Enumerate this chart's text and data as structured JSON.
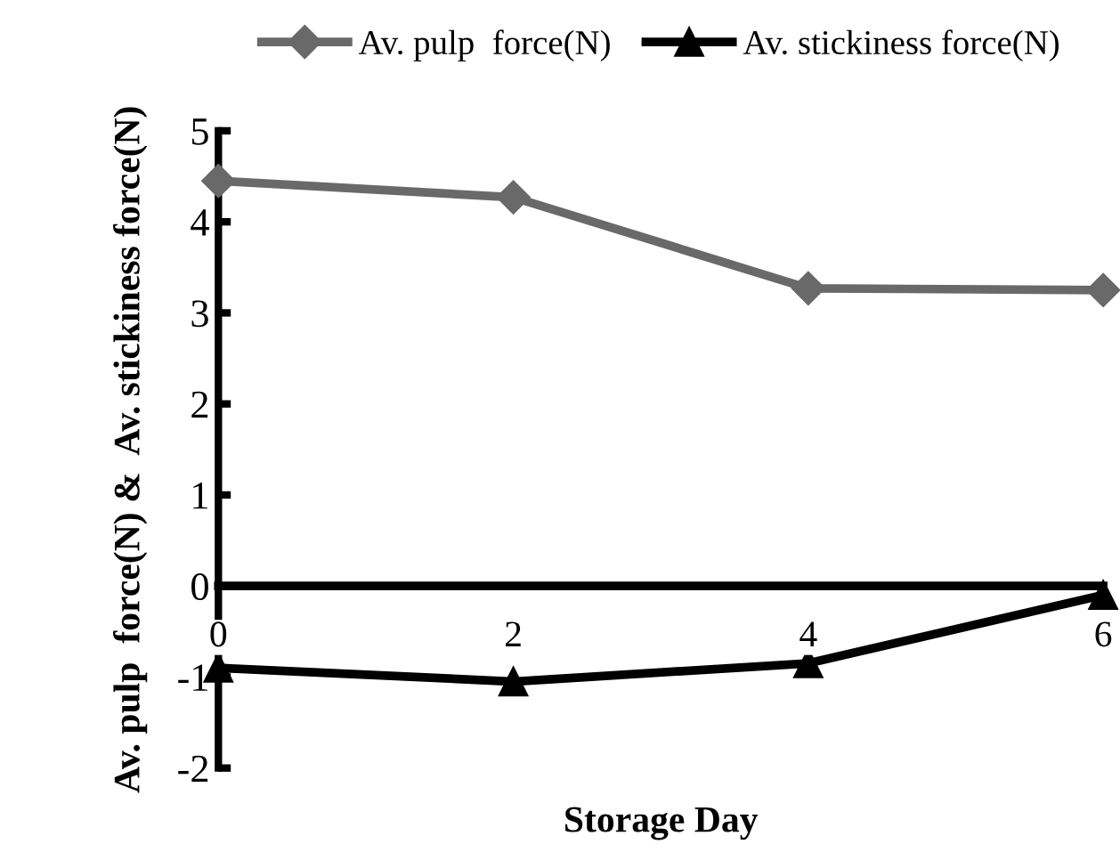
{
  "chart_data": {
    "type": "line",
    "xlabel": "Storage Day",
    "ylabel": "Av. pulp  force(N) &  Av. stickiness force(N)",
    "categories": [
      "0",
      "2",
      "4",
      "6"
    ],
    "series": [
      {
        "name": "Av. pulp  force(N)",
        "color": "#696969",
        "marker": "diamond",
        "values": [
          4.45,
          4.27,
          3.27,
          3.25
        ]
      },
      {
        "name": "Av. stickiness force(N)",
        "color": "#000000",
        "marker": "triangle",
        "values": [
          -0.9,
          -1.05,
          -0.85,
          -0.1
        ]
      }
    ],
    "ylim": [
      -2,
      5
    ],
    "yticks": [
      -2,
      -1,
      0,
      1,
      2,
      3,
      4,
      5
    ],
    "grid": false,
    "legend": "top",
    "line_style": "solid"
  }
}
